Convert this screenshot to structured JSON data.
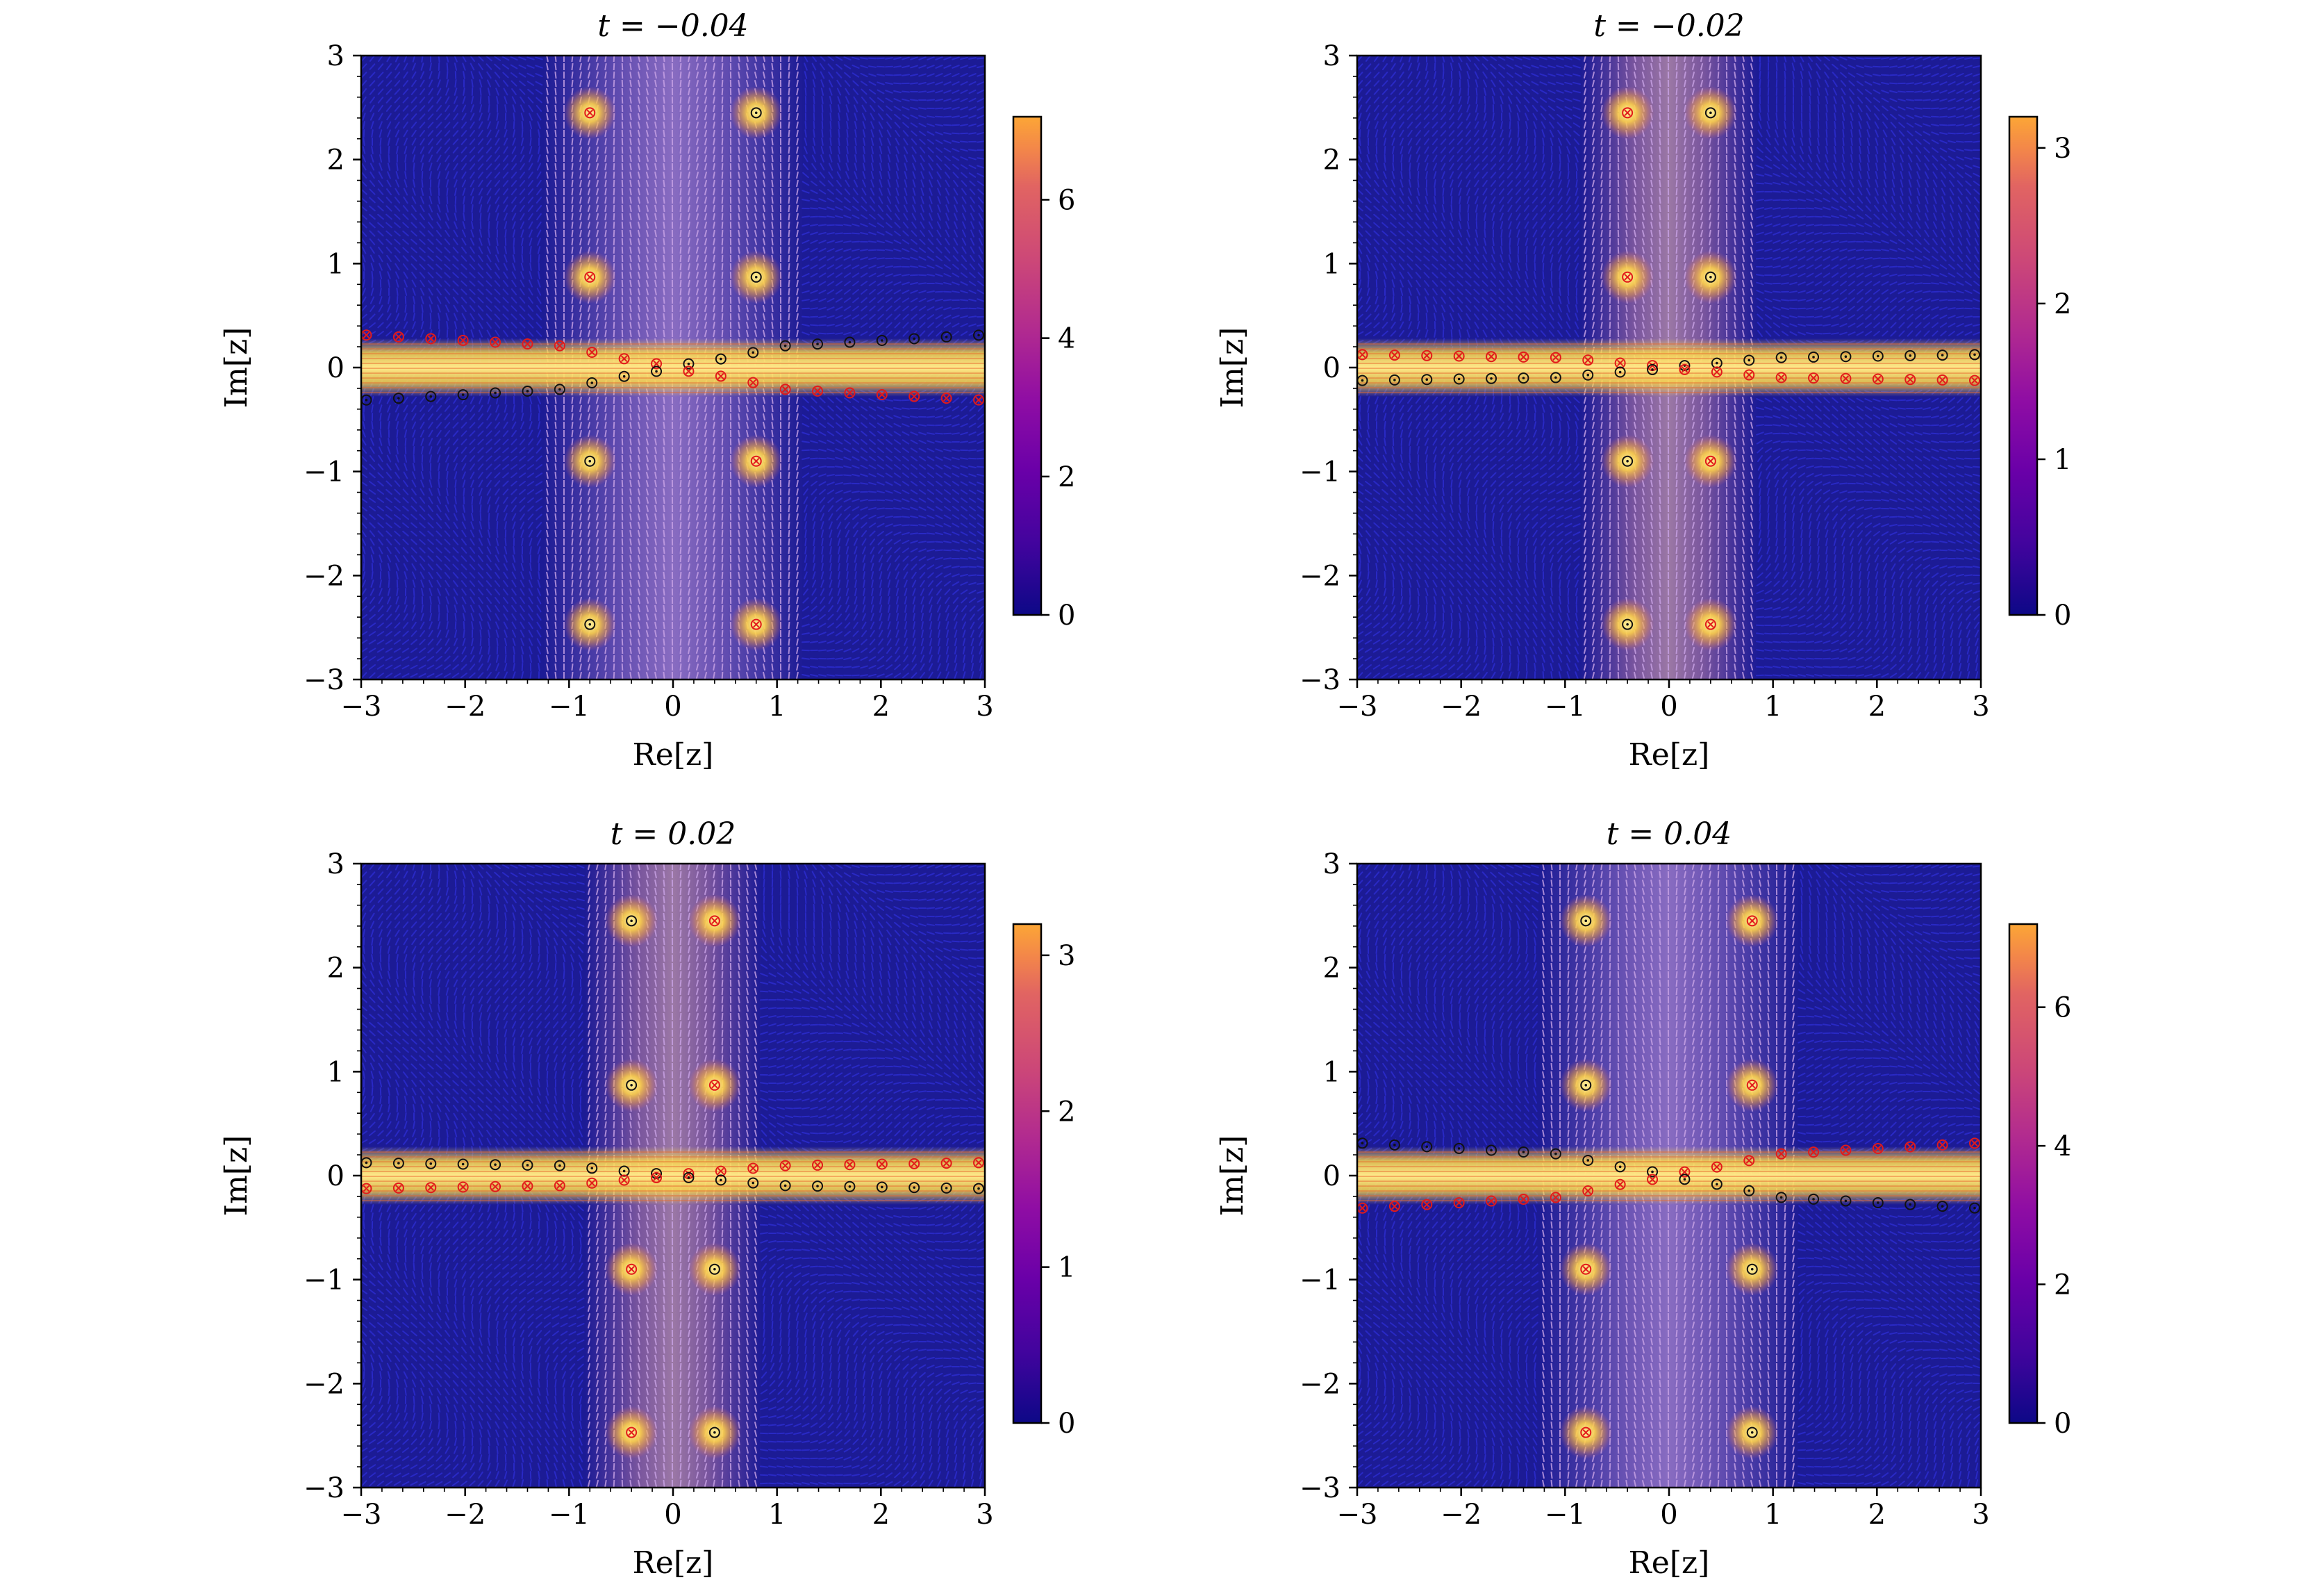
{
  "chart_data": [
    {
      "type": "heatmap",
      "title": "t = −0.04",
      "xlabel": "Re[z]",
      "ylabel": "Im[z]",
      "xlim": [
        -3,
        3
      ],
      "ylim": [
        -3,
        3
      ],
      "xticks": [
        "−3",
        "−2",
        "−1",
        "0",
        "1",
        "2",
        "3"
      ],
      "yticks": [
        "−3",
        "−2",
        "−1",
        "0",
        "1",
        "2",
        "3"
      ],
      "colorbar": {
        "range": [
          0,
          7.2
        ],
        "ticks": [
          0,
          2,
          4,
          6
        ],
        "tick_labels": [
          "0",
          "2",
          "4",
          "6"
        ],
        "colormap": "plasma"
      },
      "markers": {
        "off_axis": [
          {
            "x": -0.8,
            "y": 2.45,
            "kind": "cross"
          },
          {
            "x": 0.8,
            "y": 2.45,
            "kind": "circle"
          },
          {
            "x": -0.8,
            "y": 0.87,
            "kind": "cross"
          },
          {
            "x": 0.8,
            "y": 0.87,
            "kind": "circle"
          },
          {
            "x": -0.8,
            "y": -0.9,
            "kind": "circle"
          },
          {
            "x": 0.8,
            "y": -0.9,
            "kind": "cross"
          },
          {
            "x": -0.8,
            "y": -2.47,
            "kind": "circle"
          },
          {
            "x": 0.8,
            "y": -2.47,
            "kind": "cross"
          }
        ],
        "strip": {
          "slope": 0.055,
          "offset": 0.15,
          "left_upper": "cross",
          "right_upper": "circle"
        }
      }
    },
    {
      "type": "heatmap",
      "title": "t = −0.02",
      "xlabel": "Re[z]",
      "ylabel": "Im[z]",
      "xlim": [
        -3,
        3
      ],
      "ylim": [
        -3,
        3
      ],
      "xticks": [
        "−3",
        "−2",
        "−1",
        "0",
        "1",
        "2",
        "3"
      ],
      "yticks": [
        "−3",
        "−2",
        "−1",
        "0",
        "1",
        "2",
        "3"
      ],
      "colorbar": {
        "range": [
          0,
          3.2
        ],
        "ticks": [
          0,
          1,
          2,
          3
        ],
        "tick_labels": [
          "0",
          "1",
          "2",
          "3"
        ],
        "colormap": "plasma"
      },
      "markers": {
        "off_axis": [
          {
            "x": -0.4,
            "y": 2.45,
            "kind": "cross"
          },
          {
            "x": 0.4,
            "y": 2.45,
            "kind": "circle"
          },
          {
            "x": -0.4,
            "y": 0.87,
            "kind": "cross"
          },
          {
            "x": 0.4,
            "y": 0.87,
            "kind": "circle"
          },
          {
            "x": -0.4,
            "y": -0.9,
            "kind": "circle"
          },
          {
            "x": 0.4,
            "y": -0.9,
            "kind": "cross"
          },
          {
            "x": -0.4,
            "y": -2.47,
            "kind": "circle"
          },
          {
            "x": 0.4,
            "y": -2.47,
            "kind": "cross"
          }
        ],
        "strip": {
          "slope": 0.015,
          "offset": 0.08,
          "left_upper": "cross",
          "right_upper": "circle"
        }
      }
    },
    {
      "type": "heatmap",
      "title": "t = 0.02",
      "xlabel": "Re[z]",
      "ylabel": "Im[z]",
      "xlim": [
        -3,
        3
      ],
      "ylim": [
        -3,
        3
      ],
      "xticks": [
        "−3",
        "−2",
        "−1",
        "0",
        "1",
        "2",
        "3"
      ],
      "yticks": [
        "−3",
        "−2",
        "−1",
        "0",
        "1",
        "2",
        "3"
      ],
      "colorbar": {
        "range": [
          0,
          3.2
        ],
        "ticks": [
          0,
          1,
          2,
          3
        ],
        "tick_labels": [
          "0",
          "1",
          "2",
          "3"
        ],
        "colormap": "plasma"
      },
      "markers": {
        "off_axis": [
          {
            "x": -0.4,
            "y": 2.45,
            "kind": "circle"
          },
          {
            "x": 0.4,
            "y": 2.45,
            "kind": "cross"
          },
          {
            "x": -0.4,
            "y": 0.87,
            "kind": "circle"
          },
          {
            "x": 0.4,
            "y": 0.87,
            "kind": "cross"
          },
          {
            "x": -0.4,
            "y": -0.9,
            "kind": "cross"
          },
          {
            "x": 0.4,
            "y": -0.9,
            "kind": "circle"
          },
          {
            "x": -0.4,
            "y": -2.47,
            "kind": "cross"
          },
          {
            "x": 0.4,
            "y": -2.47,
            "kind": "circle"
          }
        ],
        "strip": {
          "slope": 0.015,
          "offset": 0.08,
          "left_upper": "circle",
          "right_upper": "cross"
        }
      }
    },
    {
      "type": "heatmap",
      "title": "t = 0.04",
      "xlabel": "Re[z]",
      "ylabel": "Im[z]",
      "xlim": [
        -3,
        3
      ],
      "ylim": [
        -3,
        3
      ],
      "xticks": [
        "−3",
        "−2",
        "−1",
        "0",
        "1",
        "2",
        "3"
      ],
      "yticks": [
        "−3",
        "−2",
        "−1",
        "0",
        "1",
        "2",
        "3"
      ],
      "colorbar": {
        "range": [
          0,
          7.2
        ],
        "ticks": [
          0,
          2,
          4,
          6
        ],
        "tick_labels": [
          "0",
          "2",
          "4",
          "6"
        ],
        "colormap": "plasma"
      },
      "markers": {
        "off_axis": [
          {
            "x": -0.8,
            "y": 2.45,
            "kind": "circle"
          },
          {
            "x": 0.8,
            "y": 2.45,
            "kind": "cross"
          },
          {
            "x": -0.8,
            "y": 0.87,
            "kind": "circle"
          },
          {
            "x": 0.8,
            "y": 0.87,
            "kind": "cross"
          },
          {
            "x": -0.8,
            "y": -0.9,
            "kind": "cross"
          },
          {
            "x": 0.8,
            "y": -0.9,
            "kind": "circle"
          },
          {
            "x": -0.8,
            "y": -2.47,
            "kind": "cross"
          },
          {
            "x": 0.8,
            "y": -2.47,
            "kind": "circle"
          }
        ],
        "strip": {
          "slope": 0.055,
          "offset": 0.15,
          "left_upper": "circle",
          "right_upper": "cross"
        }
      }
    }
  ]
}
